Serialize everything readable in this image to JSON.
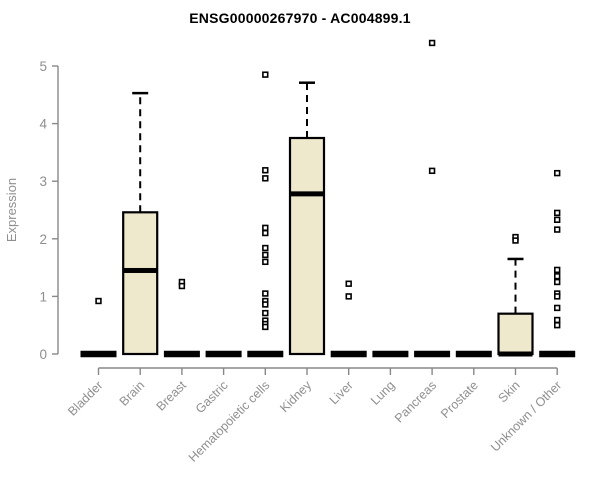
{
  "title": "ENSG00000267970 - AC004899.1",
  "colors": {
    "box_fill": "#EEE8CD",
    "box_stroke": "#000000",
    "median_color": "#000000",
    "axis_color": "#888888",
    "tick_label_color": "#8F8F8F",
    "title_color": "#000000",
    "outlier_stroke": "#000000",
    "outlier_fill": "#FFFFFF"
  },
  "chart_data": {
    "type": "boxplot",
    "title": "ENSG00000267970 - AC004899.1",
    "xlabel": "",
    "ylabel": "Expression",
    "ylim": [
      0,
      5.5
    ],
    "yticks": [
      0,
      1,
      2,
      3,
      4,
      5
    ],
    "grid": false,
    "legend": "none",
    "categories": [
      "Bladder",
      "Brain",
      "Breast",
      "Gastric",
      "Hematopoietic cells",
      "Kidney",
      "Liver",
      "Lung",
      "Pancreas",
      "Prostate",
      "Skin",
      "Unknown / Other"
    ],
    "series": [
      {
        "label": "Bladder",
        "low": 0,
        "q1": 0,
        "median": 0,
        "q3": 0,
        "high": 0,
        "outliers": [
          0.92
        ]
      },
      {
        "label": "Brain",
        "low": 0,
        "q1": 0,
        "median": 1.45,
        "q3": 2.46,
        "high": 4.53,
        "outliers": []
      },
      {
        "label": "Breast",
        "low": 0,
        "q1": 0,
        "median": 0,
        "q3": 0,
        "high": 0,
        "outliers": [
          1.25,
          1.18
        ]
      },
      {
        "label": "Gastric",
        "low": 0,
        "q1": 0,
        "median": 0,
        "q3": 0,
        "high": 0,
        "outliers": []
      },
      {
        "label": "Hematopoietic cells",
        "low": 0,
        "q1": 0,
        "median": 0,
        "q3": 0,
        "high": 0,
        "outliers": [
          4.85,
          3.19,
          3.05,
          2.19,
          2.1,
          1.84,
          1.72,
          1.6,
          1.05,
          0.92,
          0.86,
          0.71,
          0.58,
          0.52,
          0.47
        ]
      },
      {
        "label": "Kidney",
        "low": 0,
        "q1": 0,
        "median": 2.78,
        "q3": 3.75,
        "high": 4.71,
        "outliers": []
      },
      {
        "label": "Liver",
        "low": 0,
        "q1": 0,
        "median": 0,
        "q3": 0,
        "high": 0,
        "outliers": [
          1.22,
          1.0
        ]
      },
      {
        "label": "Lung",
        "low": 0,
        "q1": 0,
        "median": 0,
        "q3": 0,
        "high": 0,
        "outliers": []
      },
      {
        "label": "Pancreas",
        "low": 0,
        "q1": 0,
        "median": 0,
        "q3": 0,
        "high": 0,
        "outliers": [
          5.4,
          3.18
        ]
      },
      {
        "label": "Prostate",
        "low": 0,
        "q1": 0,
        "median": 0,
        "q3": 0,
        "high": 0,
        "outliers": []
      },
      {
        "label": "Skin",
        "low": 0,
        "q1": 0,
        "median": 0,
        "q3": 0.7,
        "high": 1.65,
        "outliers": [
          2.03,
          1.97
        ]
      },
      {
        "label": "Unknown / Other",
        "low": 0,
        "q1": 0,
        "median": 0,
        "q3": 0,
        "high": 0,
        "outliers": [
          3.14,
          2.45,
          2.33,
          2.16,
          1.46,
          1.35,
          1.25,
          1.05,
          1.0,
          0.8,
          0.59,
          0.5
        ]
      }
    ]
  }
}
